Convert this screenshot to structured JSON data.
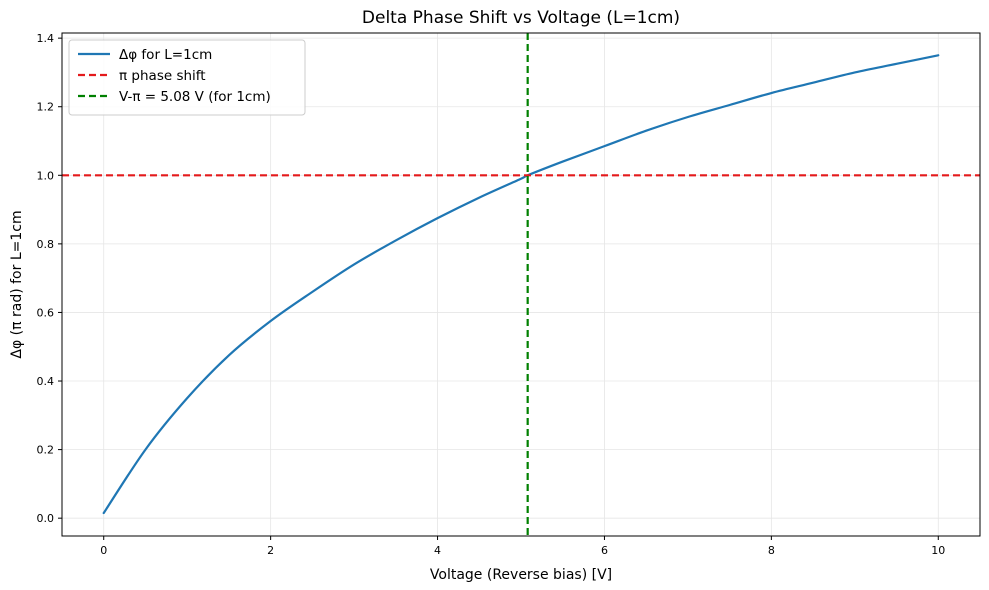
{
  "chart_data": {
    "type": "line",
    "title": "Delta Phase Shift vs Voltage (L=1cm)",
    "xlabel": "Voltage (Reverse bias) [V]",
    "ylabel": "Δφ (π rad) for L=1cm",
    "xlim": [
      -0.5,
      10.5
    ],
    "ylim": [
      -0.052,
      1.415
    ],
    "xticks": [
      0,
      2,
      4,
      6,
      8,
      10
    ],
    "yticks": [
      0.0,
      0.2,
      0.4,
      0.6,
      0.8,
      1.0,
      1.2,
      1.4
    ],
    "xtick_labels": [
      "0",
      "2",
      "4",
      "6",
      "8",
      "10"
    ],
    "ytick_labels": [
      "0.0",
      "0.2",
      "0.4",
      "0.6",
      "0.8",
      "1.0",
      "1.2",
      "1.4"
    ],
    "grid": true,
    "legend_location": "upper-left",
    "series": [
      {
        "name": "Δφ for L=1cm",
        "color": "#1f77b4",
        "style": "solid",
        "x": [
          0,
          0.5,
          1,
          1.5,
          2,
          2.5,
          3,
          3.5,
          4,
          4.5,
          5,
          5.08,
          5.5,
          6,
          6.5,
          7,
          7.5,
          8,
          8.5,
          9,
          9.5,
          10
        ],
        "y": [
          0.015,
          0.2,
          0.35,
          0.475,
          0.575,
          0.66,
          0.74,
          0.81,
          0.875,
          0.935,
          0.99,
          1.0,
          1.04,
          1.085,
          1.13,
          1.17,
          1.205,
          1.24,
          1.27,
          1.3,
          1.325,
          1.35
        ]
      }
    ],
    "reference_lines": [
      {
        "name": "π phase shift",
        "orientation": "horizontal",
        "value": 1.0,
        "color": "#e41a1c",
        "style": "dashed"
      },
      {
        "name": "V-π = 5.08 V (for 1cm)",
        "orientation": "vertical",
        "value": 5.08,
        "color": "#008000",
        "style": "dashed"
      }
    ]
  }
}
